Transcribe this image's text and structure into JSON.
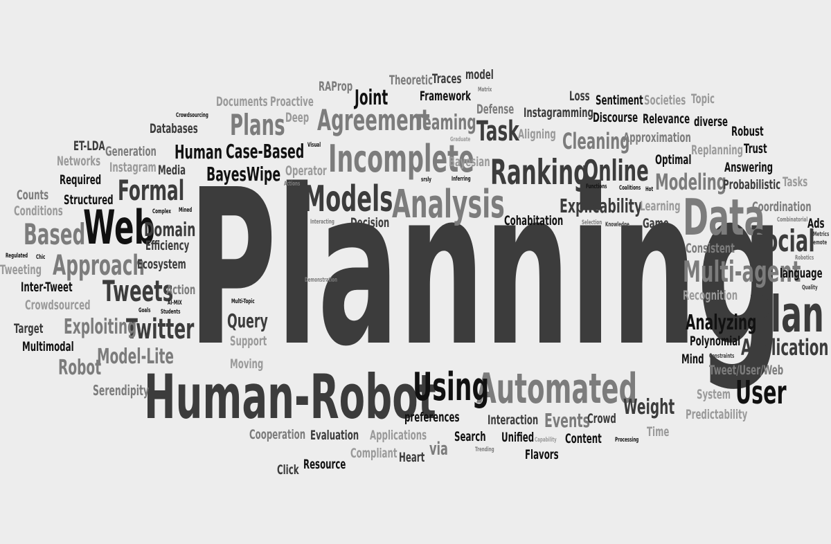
{
  "palette": {
    "background": "#ededed",
    "black": "#111111",
    "dark": "#3c3c3c",
    "mid": "#7c7c7c",
    "light": "#9a9a9a"
  },
  "words": [
    "Planning",
    "Human-Robot",
    "Data",
    "Analysis",
    "Incomplete",
    "Models",
    "Automated",
    "Web",
    "Plan",
    "Ranking",
    "Using",
    "Agreement",
    "Social",
    "Multi-agent",
    "Approach",
    "Formal",
    "Tweets",
    "Twitter",
    "Plans",
    "Based",
    "Online",
    "Task",
    "User",
    "Application",
    "Exploiting",
    "Analyzing",
    "Modeling",
    "Cleaning",
    "Explicability",
    "Model-Lite",
    "Robot",
    "Query",
    "Weight",
    "Events",
    "Teaming",
    "Joint",
    "Domain",
    "Human",
    "Case-Based",
    "BayesWipe",
    "Serendipity",
    "Documents",
    "Proactive",
    "RAProp",
    "Theoretic",
    "Traces",
    "model",
    "Framework",
    "Loss",
    "Sentiment",
    "Societies",
    "Topic",
    "Defense",
    "Instagramming",
    "Discourse",
    "Relevance",
    "diverse",
    "Robust",
    "Trust",
    "Replanning",
    "Approximation",
    "Aligning",
    "Optimal",
    "Answering",
    "Tasks",
    "Probabilistic",
    "Coordination",
    "Ads",
    "Consistent",
    "language",
    "Recognition",
    "Polynomial",
    "Mind",
    "Tweet/User/Web",
    "System",
    "Predictability",
    "Crowd",
    "Time",
    "Content",
    "Flavors",
    "Unified",
    "Search",
    "Interaction",
    "preferences",
    "Applications",
    "Cooperation",
    "Evaluation",
    "Compliant",
    "Heart",
    "via",
    "Resource",
    "Click",
    "Moving",
    "Support",
    "Cohabitation",
    "Decision",
    "Game",
    "Learning",
    "Efficiency",
    "Ecosystem",
    "Action",
    "Media",
    "Instagram",
    "Generation",
    "Networks",
    "ET-LDA",
    "Required",
    "Counts",
    "Conditions",
    "Structured",
    "Tweeting",
    "Inter-Tweet",
    "Crowdsourced",
    "Target",
    "Multimodal",
    "Databases",
    "Deep",
    "Bayesian",
    "Operator",
    "Crowdsourcing",
    "Matrix",
    "Graduate",
    "Visual",
    "Inferring",
    "srsly",
    "Actions",
    "Functions",
    "Coalitions",
    "Hot",
    "Selection",
    "Knowledge",
    "Combinatorial",
    "Metrics",
    "Remote",
    "Robotics",
    "Quality",
    "Constraints",
    "Capability",
    "Trending",
    "Processing",
    "Regulated",
    "Chic",
    "Complex",
    "Mined",
    "Interacting",
    "Demonstration",
    "Multi-Topic",
    "Goals",
    "AI-MIX",
    "Students"
  ]
}
